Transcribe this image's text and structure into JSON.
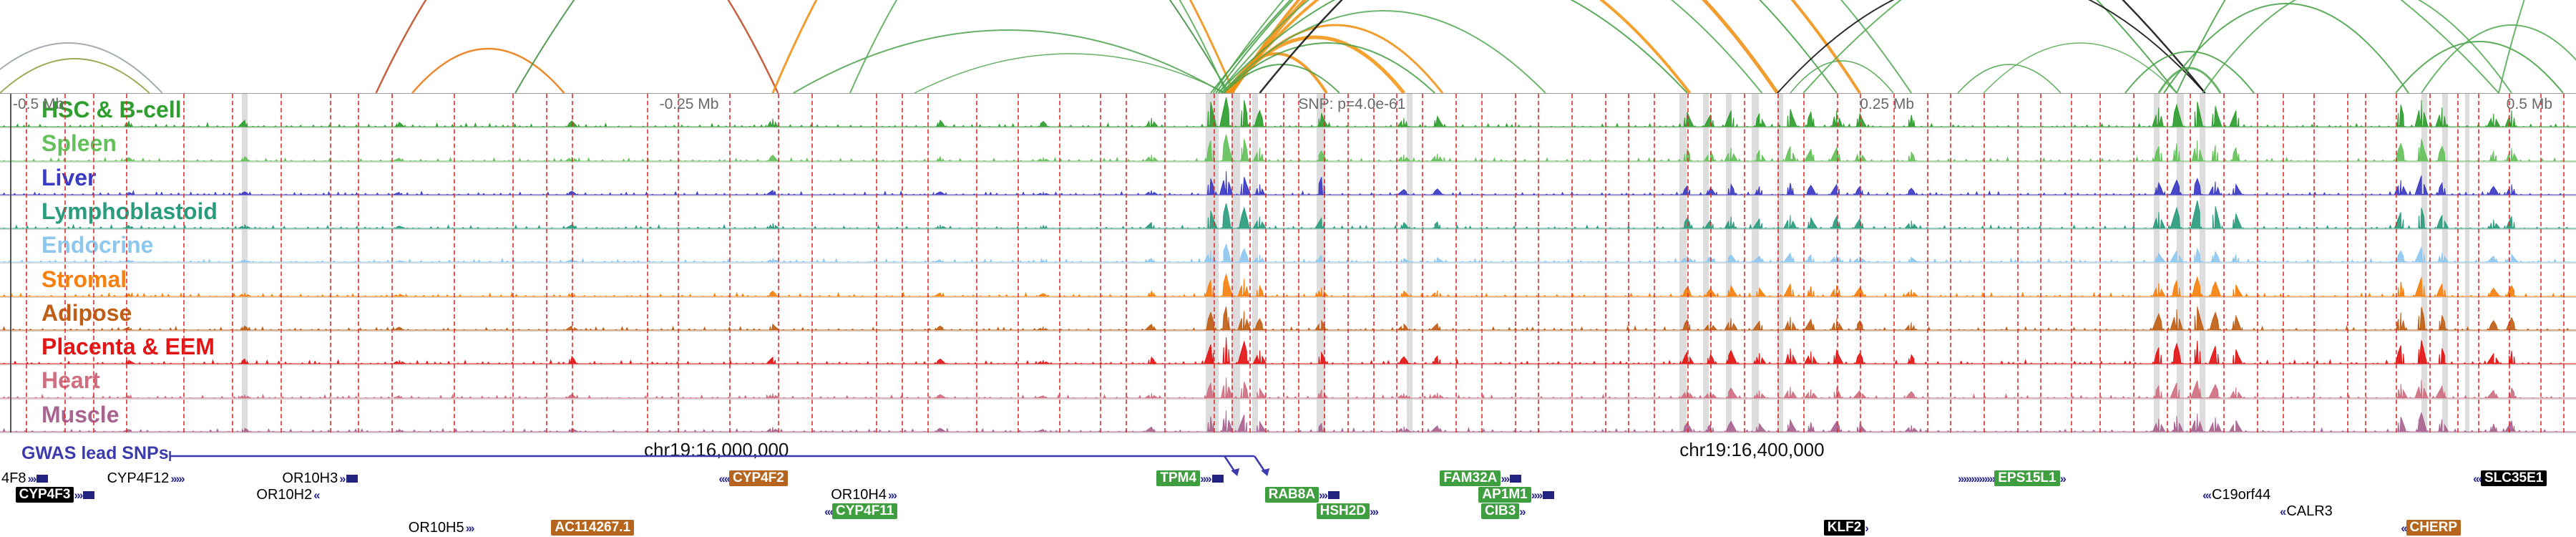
{
  "chart_data": {
    "type": "genome-browser-tracks",
    "ruler": [
      {
        "text": "-0.5 Mb",
        "x": 0.005
      },
      {
        "text": "-0.25 Mb",
        "x": 0.256
      },
      {
        "text": "SNP: p=4.0e-61",
        "x": 0.504
      },
      {
        "text": "0.25 Mb",
        "x": 0.722
      },
      {
        "text": "0.5 Mb",
        "x": 0.973
      }
    ],
    "coordinates": [
      {
        "text": "chr19:16,000,000",
        "x": 0.25
      },
      {
        "text": "chr19:16,400,000",
        "x": 0.652
      }
    ],
    "gwas": {
      "label": "GWAS lead SNPs",
      "color": "#3b3bae",
      "line": {
        "x1": 0.066,
        "x2": 0.487
      }
    },
    "peak_x": [
      0.05,
      0.095,
      0.155,
      0.222,
      0.3,
      0.365,
      0.405,
      0.447,
      0.47,
      0.476,
      0.483,
      0.489,
      0.513,
      0.545,
      0.558,
      0.655,
      0.664,
      0.672,
      0.683,
      0.695,
      0.703,
      0.713,
      0.722,
      0.742,
      0.838,
      0.845,
      0.853,
      0.86,
      0.868,
      0.932,
      0.94,
      0.948,
      0.968,
      0.975
    ],
    "tracks": [
      {
        "name": "HSC & B-cell",
        "color": "#2f9e2f",
        "peaks": [
          0.18,
          0.22,
          0.15,
          0.2,
          0.28,
          0.22,
          0.18,
          0.3,
          0.85,
          1.0,
          0.9,
          0.55,
          0.45,
          0.3,
          0.35,
          0.5,
          0.4,
          0.55,
          0.45,
          0.6,
          0.5,
          0.55,
          0.45,
          0.4,
          0.65,
          0.75,
          0.85,
          0.7,
          0.55,
          0.75,
          0.9,
          0.65,
          0.45,
          0.55
        ]
      },
      {
        "name": "Spleen",
        "color": "#64c05a",
        "peaks": [
          0.12,
          0.15,
          0.1,
          0.15,
          0.2,
          0.15,
          0.12,
          0.22,
          0.7,
          0.9,
          0.75,
          0.45,
          0.35,
          0.22,
          0.25,
          0.4,
          0.32,
          0.45,
          0.35,
          0.5,
          0.4,
          0.45,
          0.35,
          0.3,
          0.5,
          0.6,
          0.7,
          0.55,
          0.45,
          0.6,
          0.75,
          0.5,
          0.35,
          0.45
        ]
      },
      {
        "name": "Liver",
        "color": "#3a3ac4",
        "peaks": [
          0.08,
          0.1,
          0.08,
          0.12,
          0.15,
          0.1,
          0.08,
          0.15,
          0.55,
          0.8,
          0.6,
          0.35,
          0.6,
          0.18,
          0.2,
          0.3,
          0.25,
          0.35,
          0.28,
          0.4,
          0.32,
          0.35,
          0.28,
          0.22,
          0.4,
          0.5,
          0.55,
          0.45,
          0.35,
          0.5,
          0.65,
          0.4,
          0.28,
          0.35
        ]
      },
      {
        "name": "Lymphoblastoid",
        "color": "#2a9c7e",
        "peaks": [
          0.1,
          0.12,
          0.08,
          0.12,
          0.18,
          0.12,
          0.1,
          0.2,
          0.6,
          0.85,
          0.7,
          0.4,
          0.35,
          0.2,
          0.22,
          0.35,
          0.28,
          0.4,
          0.32,
          0.45,
          0.36,
          0.4,
          0.32,
          0.26,
          0.55,
          0.7,
          0.95,
          0.75,
          0.5,
          0.55,
          0.7,
          0.45,
          0.3,
          0.4
        ]
      },
      {
        "name": "Endocrine",
        "color": "#8ec7ee",
        "peaks": [
          0.06,
          0.08,
          0.05,
          0.08,
          0.12,
          0.08,
          0.06,
          0.12,
          0.4,
          0.6,
          0.45,
          0.25,
          0.22,
          0.12,
          0.15,
          0.22,
          0.18,
          0.25,
          0.2,
          0.3,
          0.24,
          0.26,
          0.2,
          0.16,
          0.3,
          0.38,
          0.45,
          0.35,
          0.26,
          0.38,
          0.5,
          0.32,
          0.2,
          0.26
        ]
      },
      {
        "name": "Stromal",
        "color": "#f5800f",
        "peaks": [
          0.1,
          0.12,
          0.08,
          0.12,
          0.18,
          0.12,
          0.1,
          0.18,
          0.55,
          0.75,
          0.6,
          0.35,
          0.3,
          0.18,
          0.2,
          0.32,
          0.26,
          0.36,
          0.28,
          0.42,
          0.34,
          0.38,
          0.3,
          0.24,
          0.45,
          0.55,
          0.65,
          0.5,
          0.4,
          0.5,
          0.65,
          0.42,
          0.28,
          0.36
        ]
      },
      {
        "name": "Adipose",
        "color": "#bf5e16",
        "peaks": [
          0.1,
          0.14,
          0.1,
          0.14,
          0.2,
          0.14,
          0.1,
          0.2,
          0.6,
          0.8,
          0.65,
          0.38,
          0.32,
          0.2,
          0.22,
          0.35,
          0.28,
          0.4,
          0.3,
          0.45,
          0.36,
          0.4,
          0.32,
          0.26,
          0.55,
          0.7,
          0.8,
          0.6,
          0.48,
          0.6,
          0.78,
          0.5,
          0.32,
          0.42
        ]
      },
      {
        "name": "Placenta & EEM",
        "color": "#e21414",
        "peaks": [
          0.12,
          0.16,
          0.12,
          0.25,
          0.22,
          0.16,
          0.12,
          0.22,
          0.65,
          0.9,
          0.75,
          0.45,
          0.38,
          0.24,
          0.26,
          0.4,
          0.32,
          0.45,
          0.36,
          0.52,
          0.42,
          0.46,
          0.36,
          0.3,
          0.55,
          0.68,
          0.78,
          0.6,
          0.48,
          0.62,
          0.8,
          0.52,
          0.34,
          0.44
        ]
      },
      {
        "name": "Heart",
        "color": "#ce6f80",
        "peaks": [
          0.08,
          0.12,
          0.08,
          0.12,
          0.16,
          0.12,
          0.08,
          0.16,
          0.5,
          0.7,
          0.55,
          0.32,
          0.28,
          0.16,
          0.18,
          0.3,
          0.24,
          0.34,
          0.26,
          0.38,
          0.3,
          0.34,
          0.26,
          0.22,
          0.42,
          0.52,
          0.6,
          0.46,
          0.36,
          0.48,
          0.62,
          0.4,
          0.26,
          0.34
        ]
      },
      {
        "name": "Muscle",
        "color": "#a9638f",
        "peaks": [
          0.08,
          0.12,
          0.08,
          0.12,
          0.16,
          0.12,
          0.08,
          0.16,
          0.52,
          0.72,
          0.58,
          0.34,
          0.28,
          0.18,
          0.2,
          0.3,
          0.25,
          0.35,
          0.27,
          0.4,
          0.32,
          0.35,
          0.27,
          0.22,
          0.44,
          0.54,
          0.62,
          0.48,
          0.38,
          0.5,
          0.64,
          0.42,
          0.27,
          0.36
        ]
      }
    ],
    "arcs": [
      [
        -0.01,
        0.063,
        70,
        "#9aa0a6",
        2
      ],
      [
        0.0,
        0.058,
        48,
        "#8aa03c",
        2
      ],
      [
        0.16,
        0.219,
        62,
        "#e8790e",
        2.5
      ],
      [
        0.146,
        0.302,
        300,
        "#bf4b24",
        2.5
      ],
      [
        0.308,
        0.475,
        88,
        "#53a553",
        2
      ],
      [
        0.355,
        0.476,
        55,
        "#53a553",
        1.5
      ],
      [
        0.2,
        0.477,
        430,
        "#3e8e3e",
        2
      ],
      [
        0.33,
        0.476,
        300,
        "#57ab57",
        2
      ],
      [
        0.3,
        0.479,
        380,
        "#ef8f12",
        3
      ],
      [
        0.476,
        0.515,
        55,
        "#ef8f12",
        4
      ],
      [
        0.476,
        0.545,
        78,
        "#f29413",
        5
      ],
      [
        0.477,
        0.56,
        95,
        "#ef8f12",
        3
      ],
      [
        0.477,
        0.656,
        210,
        "#f29413",
        4
      ],
      [
        0.478,
        0.69,
        280,
        "#ef8f12",
        5
      ],
      [
        0.478,
        0.722,
        340,
        "#ef8f12",
        4
      ],
      [
        0.475,
        0.52,
        40,
        "#46a046",
        2
      ],
      [
        0.474,
        0.557,
        70,
        "#46a046",
        2
      ],
      [
        0.474,
        0.6,
        115,
        "#57ab57",
        2
      ],
      [
        0.473,
        0.655,
        175,
        "#46a046",
        2
      ],
      [
        0.473,
        0.684,
        235,
        "#57ab57",
        2
      ],
      [
        0.472,
        0.713,
        300,
        "#46a046",
        2
      ],
      [
        0.471,
        0.742,
        360,
        "#57ab57",
        2
      ],
      [
        0.47,
        0.845,
        430,
        "#46a046",
        2
      ],
      [
        0.489,
        0.856,
        410,
        "#111111",
        2.5
      ],
      [
        0.69,
        0.856,
        165,
        "#111111",
        2
      ],
      [
        0.695,
        0.735,
        45,
        "#46a046",
        1.5
      ],
      [
        0.7,
        0.97,
        270,
        "#57ab57",
        2
      ],
      [
        0.76,
        0.8,
        40,
        "#46a046",
        1.5
      ],
      [
        0.77,
        0.845,
        70,
        "#57ab57",
        1.5
      ],
      [
        0.825,
        0.875,
        58,
        "#46a046",
        2
      ],
      [
        0.838,
        0.862,
        35,
        "#57ab57",
        3
      ],
      [
        0.84,
        0.935,
        125,
        "#46a046",
        2
      ],
      [
        0.855,
        0.975,
        155,
        "#57ab57",
        2
      ],
      [
        0.93,
        0.995,
        72,
        "#46a046",
        2
      ],
      [
        0.94,
        1.01,
        95,
        "#57ab57",
        2
      ],
      [
        0.845,
        1.02,
        340,
        "#46a046",
        2
      ],
      [
        0.97,
        1.05,
        300,
        "#57ab57",
        2
      ]
    ],
    "red_lines": [
      0.01,
      0.025,
      0.036,
      0.049,
      0.071,
      0.09,
      0.109,
      0.128,
      0.139,
      0.152,
      0.176,
      0.199,
      0.212,
      0.222,
      0.251,
      0.263,
      0.283,
      0.302,
      0.315,
      0.34,
      0.35,
      0.36,
      0.379,
      0.395,
      0.411,
      0.427,
      0.437,
      0.452,
      0.471,
      0.478,
      0.485,
      0.491,
      0.498,
      0.504,
      0.514,
      0.523,
      0.533,
      0.542,
      0.552,
      0.565,
      0.575,
      0.588,
      0.597,
      0.61,
      0.623,
      0.632,
      0.642,
      0.655,
      0.664,
      0.677,
      0.69,
      0.7,
      0.713,
      0.722,
      0.735,
      0.748,
      0.757,
      0.77,
      0.783,
      0.792,
      0.804,
      0.815,
      0.828,
      0.841,
      0.85,
      0.863,
      0.876,
      0.886,
      0.898,
      0.911,
      0.918,
      0.93,
      0.943,
      0.954,
      0.962,
      0.974,
      0.986,
      0.995
    ],
    "highlight_bands": [
      [
        0.094,
        8
      ],
      [
        0.468,
        18
      ],
      [
        0.478,
        12
      ],
      [
        0.486,
        8
      ],
      [
        0.511,
        12
      ],
      [
        0.546,
        8
      ],
      [
        0.652,
        10
      ],
      [
        0.661,
        8
      ],
      [
        0.67,
        8
      ],
      [
        0.68,
        10
      ],
      [
        0.69,
        8
      ],
      [
        0.836,
        8
      ],
      [
        0.845,
        10
      ],
      [
        0.854,
        8
      ],
      [
        0.94,
        8
      ],
      [
        0.948,
        8
      ],
      [
        0.957,
        6
      ]
    ],
    "genes": [
      {
        "label": "4F8",
        "x": 0.0,
        "row": 0,
        "box": "none",
        "dir": "+",
        "pre": 0,
        "post": 3,
        "exon": true
      },
      {
        "label": "CYP4F12",
        "x": 0.041,
        "row": 0,
        "box": "none",
        "dir": "+",
        "pre": 0,
        "post": 5,
        "exon": false
      },
      {
        "label": "OR10H3",
        "x": 0.109,
        "row": 0,
        "box": "none",
        "dir": "+",
        "pre": 0,
        "post": 2,
        "exon": true
      },
      {
        "label": "CYP4F2",
        "x": 0.279,
        "row": 0,
        "box": "sienna",
        "dir": "-",
        "pre": 4,
        "post": 0,
        "exon": false
      },
      {
        "label": "TPM4",
        "x": 0.449,
        "row": 0,
        "box": "green",
        "dir": "+",
        "pre": 0,
        "post": 4,
        "exon": true
      },
      {
        "label": "FAM32A",
        "x": 0.559,
        "row": 0,
        "box": "green",
        "dir": "+",
        "pre": 0,
        "post": 3,
        "exon": true
      },
      {
        "label": "EPS15L1",
        "x": 0.76,
        "row": 0,
        "box": "green",
        "dir": "+",
        "pre": 14,
        "post": 2,
        "exon": false
      },
      {
        "label": "SLC35E1",
        "x": 0.96,
        "row": 0,
        "box": "black",
        "dir": "-",
        "pre": 3,
        "post": 0,
        "exon": false
      },
      {
        "label": "CYP4F3",
        "x": 0.006,
        "row": 1,
        "box": "black",
        "dir": "+",
        "pre": 0,
        "post": 3,
        "exon": true
      },
      {
        "label": "OR10H2",
        "x": 0.099,
        "row": 1,
        "box": "none",
        "dir": "-",
        "pre": 0,
        "post": 2,
        "exon": false
      },
      {
        "label": "OR10H4",
        "x": 0.322,
        "row": 1,
        "box": "none",
        "dir": "+",
        "pre": 0,
        "post": 3,
        "exon": false
      },
      {
        "label": "RAB8A",
        "x": 0.491,
        "row": 1,
        "box": "green",
        "dir": "+",
        "pre": 0,
        "post": 3,
        "exon": true
      },
      {
        "label": "AP1M1",
        "x": 0.574,
        "row": 1,
        "box": "green",
        "dir": "+",
        "pre": 0,
        "post": 4,
        "exon": true
      },
      {
        "label": "C19orf44",
        "x": 0.855,
        "row": 1,
        "box": "none",
        "dir": "-",
        "pre": 3,
        "post": 0,
        "exon": false
      },
      {
        "label": "CYP4F11",
        "x": 0.32,
        "row": 2,
        "box": "green",
        "dir": "-",
        "pre": 3,
        "post": 0,
        "exon": false
      },
      {
        "label": "HSH2D",
        "x": 0.511,
        "row": 2,
        "box": "green",
        "dir": "+",
        "pre": 0,
        "post": 3,
        "exon": false
      },
      {
        "label": "CIB3",
        "x": 0.575,
        "row": 2,
        "box": "green",
        "dir": "+",
        "pre": 0,
        "post": 2,
        "exon": false
      },
      {
        "label": "CALR3",
        "x": 0.885,
        "row": 2,
        "box": "none",
        "dir": "-",
        "pre": 2,
        "post": 0,
        "exon": false
      },
      {
        "label": "OR10H5",
        "x": 0.158,
        "row": 3,
        "box": "none",
        "dir": "+",
        "pre": 0,
        "post": 3,
        "exon": false
      },
      {
        "label": "AC114267.1",
        "x": 0.214,
        "row": 3,
        "box": "sienna",
        "dir": "+",
        "pre": 0,
        "post": 0,
        "exon": false
      },
      {
        "label": "KLF2",
        "x": 0.708,
        "row": 3,
        "box": "black",
        "dir": "+",
        "pre": 0,
        "post": 1,
        "exon": false
      },
      {
        "label": "CHERP",
        "x": 0.932,
        "row": 3,
        "box": "sienna",
        "dir": "-",
        "pre": 2,
        "post": 0,
        "exon": false
      }
    ]
  }
}
